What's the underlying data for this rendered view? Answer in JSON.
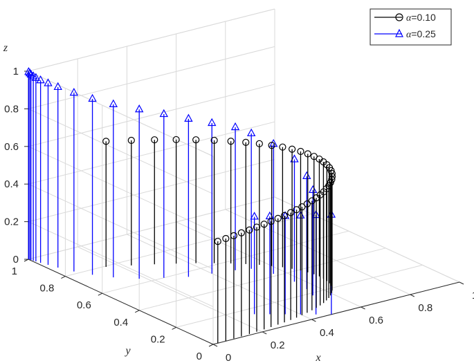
{
  "chart_data": {
    "type": "stem3",
    "title": "",
    "xlabel": "x",
    "ylabel": "y",
    "zlabel": "z",
    "xlim": [
      0,
      1
    ],
    "ylim": [
      0,
      1
    ],
    "zlim": [
      0,
      1
    ],
    "x_ticks": [
      "0",
      "0.2",
      "0.4",
      "0.6",
      "0.8",
      "1"
    ],
    "y_ticks": [
      "0",
      "0.2",
      "0.4",
      "0.6",
      "0.8",
      "1"
    ],
    "z_ticks": [
      "0",
      "0.2",
      "0.4",
      "0.6",
      "0.8",
      "1"
    ],
    "grid": true,
    "legend_position": "top-right",
    "colors": {
      "alpha_010": "#000000",
      "alpha_025": "#0000ff",
      "grid": "#d9d9d9",
      "axis": "#262626"
    },
    "series": [
      {
        "name": "α=0.10",
        "alpha_value": "0.10",
        "marker": "circle",
        "color": "#000000",
        "points": [
          {
            "x": 0.019,
            "y": 0.0,
            "z": 0.541
          },
          {
            "x": 0.053,
            "y": 0.002,
            "z": 0.544
          },
          {
            "x": 0.087,
            "y": 0.004,
            "z": 0.547
          },
          {
            "x": 0.12,
            "y": 0.007,
            "z": 0.55
          },
          {
            "x": 0.154,
            "y": 0.009,
            "z": 0.553
          },
          {
            "x": 0.186,
            "y": 0.012,
            "z": 0.556
          },
          {
            "x": 0.219,
            "y": 0.016,
            "z": 0.559
          },
          {
            "x": 0.25,
            "y": 0.02,
            "z": 0.562
          },
          {
            "x": 0.282,
            "y": 0.025,
            "z": 0.565
          },
          {
            "x": 0.312,
            "y": 0.03,
            "z": 0.568
          },
          {
            "x": 0.342,
            "y": 0.036,
            "z": 0.571
          },
          {
            "x": 0.371,
            "y": 0.043,
            "z": 0.574
          },
          {
            "x": 0.399,
            "y": 0.051,
            "z": 0.576
          },
          {
            "x": 0.426,
            "y": 0.059,
            "z": 0.579
          },
          {
            "x": 0.453,
            "y": 0.069,
            "z": 0.582
          },
          {
            "x": 0.478,
            "y": 0.079,
            "z": 0.585
          },
          {
            "x": 0.502,
            "y": 0.09,
            "z": 0.588
          },
          {
            "x": 0.525,
            "y": 0.102,
            "z": 0.591
          },
          {
            "x": 0.547,
            "y": 0.116,
            "z": 0.594
          },
          {
            "x": 0.567,
            "y": 0.13,
            "z": 0.597
          },
          {
            "x": 0.586,
            "y": 0.146,
            "z": 0.6
          },
          {
            "x": 0.603,
            "y": 0.162,
            "z": 0.603
          },
          {
            "x": 0.618,
            "y": 0.18,
            "z": 0.606
          },
          {
            "x": 0.632,
            "y": 0.199,
            "z": 0.609
          },
          {
            "x": 0.643,
            "y": 0.219,
            "z": 0.612
          },
          {
            "x": 0.652,
            "y": 0.24,
            "z": 0.615
          },
          {
            "x": 0.659,
            "y": 0.263,
            "z": 0.618
          },
          {
            "x": 0.663,
            "y": 0.287,
            "z": 0.621
          },
          {
            "x": 0.665,
            "y": 0.312,
            "z": 0.624
          },
          {
            "x": 0.663,
            "y": 0.338,
            "z": 0.627
          },
          {
            "x": 0.658,
            "y": 0.365,
            "z": 0.63
          },
          {
            "x": 0.65,
            "y": 0.393,
            "z": 0.633
          },
          {
            "x": 0.637,
            "y": 0.422,
            "z": 0.636
          },
          {
            "x": 0.621,
            "y": 0.452,
            "z": 0.639
          },
          {
            "x": 0.6,
            "y": 0.483,
            "z": 0.641
          },
          {
            "x": 0.574,
            "y": 0.515,
            "z": 0.644
          },
          {
            "x": 0.543,
            "y": 0.547,
            "z": 0.647
          },
          {
            "x": 0.507,
            "y": 0.58,
            "z": 0.65
          },
          {
            "x": 0.465,
            "y": 0.614,
            "z": 0.653
          },
          {
            "x": 0.417,
            "y": 0.649,
            "z": 0.656
          },
          {
            "x": 0.363,
            "y": 0.684,
            "z": 0.659
          },
          {
            "x": 0.302,
            "y": 0.72,
            "z": 0.662
          },
          {
            "x": 0.235,
            "y": 0.756,
            "z": 0.665
          },
          {
            "x": 0.16,
            "y": 0.793,
            "z": 0.668
          }
        ]
      },
      {
        "name": "α=0.25",
        "alpha_value": "0.25",
        "marker": "triangle",
        "color": "#0000ff",
        "points": [
          {
            "x": 0.48,
            "y": 0.0,
            "z": 0.53
          },
          {
            "x": 0.44,
            "y": 0.03,
            "z": 0.528
          },
          {
            "x": 0.4,
            "y": 0.06,
            "z": 0.525
          },
          {
            "x": 0.36,
            "y": 0.09,
            "z": 0.522
          },
          {
            "x": 0.32,
            "y": 0.12,
            "z": 0.52
          },
          {
            "x": 0.28,
            "y": 0.15,
            "z": 0.518
          },
          {
            "x": 0.54,
            "y": 0.18,
            "z": 0.56
          },
          {
            "x": 0.56,
            "y": 0.24,
            "z": 0.6
          },
          {
            "x": 0.57,
            "y": 0.32,
            "z": 0.65
          },
          {
            "x": 0.56,
            "y": 0.42,
            "z": 0.69
          },
          {
            "x": 0.53,
            "y": 0.5,
            "z": 0.72
          },
          {
            "x": 0.48,
            "y": 0.52,
            "z": 0.76
          },
          {
            "x": 0.4,
            "y": 0.54,
            "z": 0.8
          },
          {
            "x": 0.32,
            "y": 0.56,
            "z": 0.84
          },
          {
            "x": 0.25,
            "y": 0.6,
            "z": 0.87
          },
          {
            "x": 0.18,
            "y": 0.64,
            "z": 0.9
          },
          {
            "x": 0.12,
            "y": 0.7,
            "z": 0.92
          },
          {
            "x": 0.08,
            "y": 0.76,
            "z": 0.935
          },
          {
            "x": 0.05,
            "y": 0.82,
            "z": 0.95
          },
          {
            "x": 0.03,
            "y": 0.88,
            "z": 0.96
          },
          {
            "x": 0.02,
            "y": 0.92,
            "z": 0.965
          },
          {
            "x": 0.012,
            "y": 0.95,
            "z": 0.97
          },
          {
            "x": 0.008,
            "y": 0.97,
            "z": 0.975
          },
          {
            "x": 0.005,
            "y": 0.98,
            "z": 0.98
          },
          {
            "x": 0.003,
            "y": 0.99,
            "z": 0.985
          },
          {
            "x": 0.002,
            "y": 0.995,
            "z": 0.99
          },
          {
            "x": 0.001,
            "y": 1.0,
            "z": 0.995
          }
        ]
      }
    ]
  },
  "legend": [
    {
      "label": "α=0.10",
      "greek": "α",
      "value": "=0.10"
    },
    {
      "label": "α=0.25",
      "greek": "α",
      "value": "=0.25"
    }
  ]
}
